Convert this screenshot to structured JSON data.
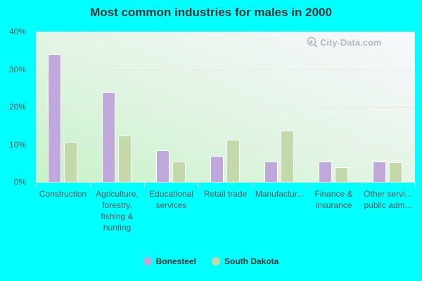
{
  "title": "Most common industries for males in 2000",
  "watermark": "City-Data.com",
  "legend": [
    {
      "label": "Bonesteel",
      "color": "#bea9da"
    },
    {
      "label": "South Dakota",
      "color": "#c4d9a9"
    }
  ],
  "y_ticks": [
    "0%",
    "10%",
    "20%",
    "30%",
    "40%"
  ],
  "chart_data": {
    "type": "bar",
    "title": "Most common industries for males in 2000",
    "xlabel": "",
    "ylabel": "",
    "ylim": [
      0,
      40
    ],
    "y_ticks": [
      "0%",
      "10%",
      "20%",
      "30%",
      "40%"
    ],
    "grid": true,
    "legend_position": "bottom",
    "categories": [
      "Construction",
      "Agriculture,\nforestry,\nfishing &\nhunting",
      "Educational\nservices",
      "Retail trade",
      "Manufactur...",
      "Finance &\ninsurance",
      "Other servi...\npublic adm..."
    ],
    "series": [
      {
        "name": "Bonesteel",
        "color": "#bea9da",
        "values": [
          34.1,
          24.0,
          8.5,
          7.0,
          5.5,
          5.5,
          5.5
        ]
      },
      {
        "name": "South Dakota",
        "color": "#c4d9a9",
        "values": [
          10.7,
          12.3,
          5.5,
          11.3,
          13.7,
          3.9,
          5.2
        ]
      }
    ]
  }
}
